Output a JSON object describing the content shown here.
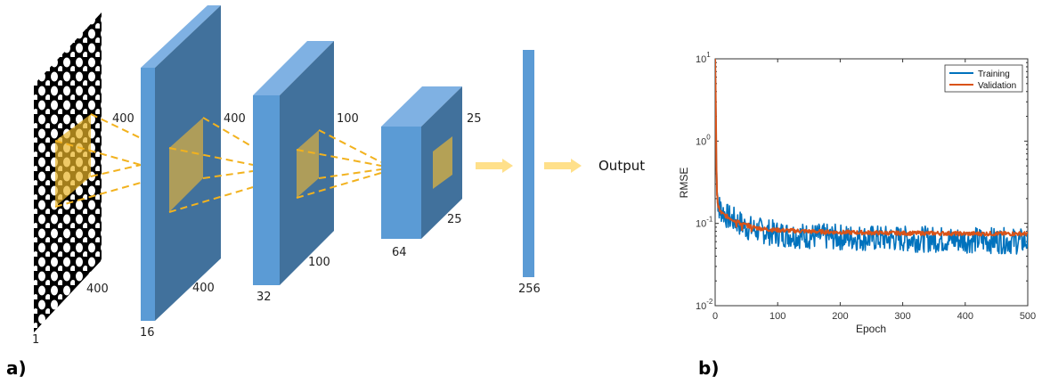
{
  "diagram": {
    "panel_label": "a)",
    "output_label": "Output",
    "layers": [
      {
        "depth": "1",
        "width": "400",
        "height": "400"
      },
      {
        "depth": "16",
        "width": "400",
        "height": "400"
      },
      {
        "depth": "32",
        "width": "100",
        "height": "100"
      },
      {
        "depth": "64",
        "width": "25",
        "height": "25"
      },
      {
        "depth": "256"
      }
    ],
    "colors": {
      "layer_front": "#5b9bd5",
      "layer_side": "#41719c",
      "layer_top": "#7fb1e3",
      "kernel": "#e8b426",
      "arrow": "#ffe08a",
      "input_bg": "#000000",
      "input_blob": "#ffffff"
    }
  },
  "chart_data": {
    "panel_label": "b)",
    "type": "line",
    "xlabel": "Epoch",
    "ylabel": "RMSE",
    "xlim": [
      0,
      500
    ],
    "ylim": [
      0.01,
      10
    ],
    "yscale": "log",
    "x_ticks": [
      "0",
      "100",
      "200",
      "300",
      "400",
      "500"
    ],
    "y_ticks": [
      {
        "base": "10",
        "exp": "-2",
        "value": 0.01
      },
      {
        "base": "10",
        "exp": "-1",
        "value": 0.1
      },
      {
        "base": "10",
        "exp": "0",
        "value": 1
      },
      {
        "base": "10",
        "exp": "1",
        "value": 10
      }
    ],
    "grid": false,
    "legend_position": "top-right",
    "series": [
      {
        "name": "Training",
        "color": "#0072bd",
        "x": [
          0,
          1,
          2,
          3,
          5,
          8,
          12,
          20,
          30,
          40,
          50,
          60,
          80,
          100,
          150,
          200,
          250,
          300,
          350,
          400,
          450,
          500
        ],
        "y": [
          10,
          3,
          0.6,
          0.25,
          0.17,
          0.15,
          0.14,
          0.12,
          0.11,
          0.1,
          0.09,
          0.085,
          0.08,
          0.075,
          0.07,
          0.068,
          0.066,
          0.065,
          0.064,
          0.063,
          0.062,
          0.06
        ],
        "noise": "high"
      },
      {
        "name": "Validation",
        "color": "#d95319",
        "x": [
          0,
          1,
          2,
          3,
          5,
          8,
          12,
          20,
          30,
          40,
          50,
          60,
          80,
          100,
          150,
          200,
          250,
          300,
          350,
          400,
          450,
          500
        ],
        "y": [
          10,
          3,
          0.5,
          0.22,
          0.16,
          0.14,
          0.13,
          0.12,
          0.11,
          0.1,
          0.095,
          0.09,
          0.085,
          0.083,
          0.08,
          0.078,
          0.077,
          0.076,
          0.076,
          0.075,
          0.075,
          0.075
        ],
        "noise": "low"
      }
    ]
  }
}
